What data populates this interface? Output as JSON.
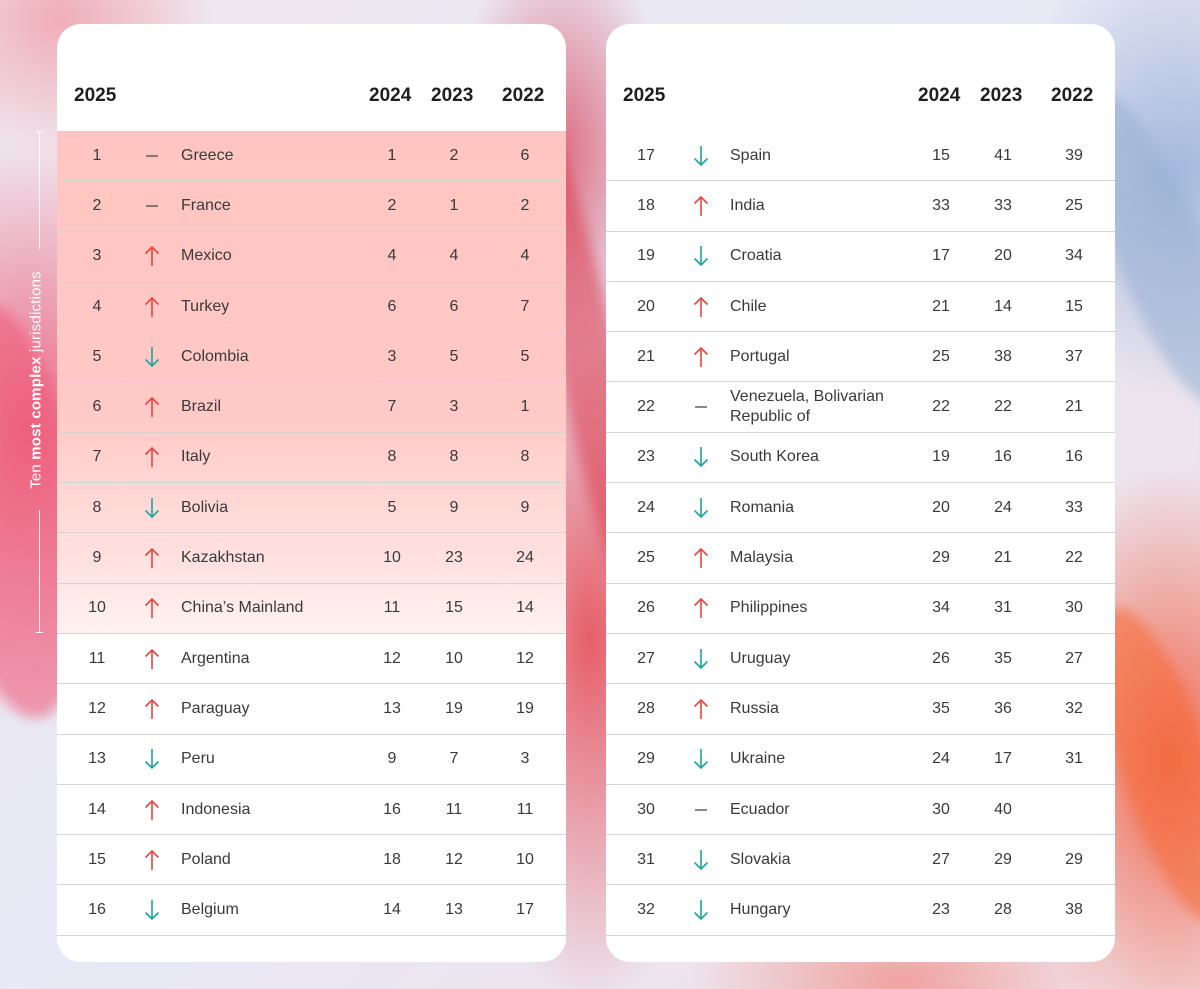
{
  "headers": {
    "y2025": "2025",
    "y2024": "2024",
    "y2023": "2023",
    "y2022": "2022"
  },
  "side_label": {
    "prefix": "Ten ",
    "bold": "most complex",
    "suffix": " jurisdictions"
  },
  "colors": {
    "up": "#e8463f",
    "down": "#1aa5a0",
    "same": "#555555",
    "highlight": "#ffc5c1"
  },
  "left_rows": [
    {
      "rank": "1",
      "trend": "same",
      "name": "Greece",
      "y2024": "1",
      "y2023": "2",
      "y2022": "6"
    },
    {
      "rank": "2",
      "trend": "same",
      "name": "France",
      "y2024": "2",
      "y2023": "1",
      "y2022": "2"
    },
    {
      "rank": "3",
      "trend": "up",
      "name": "Mexico",
      "y2024": "4",
      "y2023": "4",
      "y2022": "4"
    },
    {
      "rank": "4",
      "trend": "up",
      "name": "Turkey",
      "y2024": "6",
      "y2023": "6",
      "y2022": "7"
    },
    {
      "rank": "5",
      "trend": "down",
      "name": "Colombia",
      "y2024": "3",
      "y2023": "5",
      "y2022": "5"
    },
    {
      "rank": "6",
      "trend": "up",
      "name": "Brazil",
      "y2024": "7",
      "y2023": "3",
      "y2022": "1"
    },
    {
      "rank": "7",
      "trend": "up",
      "name": "Italy",
      "y2024": "8",
      "y2023": "8",
      "y2022": "8"
    },
    {
      "rank": "8",
      "trend": "down",
      "name": "Bolivia",
      "y2024": "5",
      "y2023": "9",
      "y2022": "9"
    },
    {
      "rank": "9",
      "trend": "up",
      "name": "Kazakhstan",
      "y2024": "10",
      "y2023": "23",
      "y2022": "24"
    },
    {
      "rank": "10",
      "trend": "up",
      "name": "China’s Mainland",
      "y2024": "11",
      "y2023": "15",
      "y2022": "14"
    },
    {
      "rank": "11",
      "trend": "up",
      "name": "Argentina",
      "y2024": "12",
      "y2023": "10",
      "y2022": "12"
    },
    {
      "rank": "12",
      "trend": "up",
      "name": "Paraguay",
      "y2024": "13",
      "y2023": "19",
      "y2022": "19"
    },
    {
      "rank": "13",
      "trend": "down",
      "name": "Peru",
      "y2024": "9",
      "y2023": "7",
      "y2022": "3"
    },
    {
      "rank": "14",
      "trend": "up",
      "name": "Indonesia",
      "y2024": "16",
      "y2023": "11",
      "y2022": "11"
    },
    {
      "rank": "15",
      "trend": "up",
      "name": "Poland",
      "y2024": "18",
      "y2023": "12",
      "y2022": "10"
    },
    {
      "rank": "16",
      "trend": "down",
      "name": "Belgium",
      "y2024": "14",
      "y2023": "13",
      "y2022": "17"
    }
  ],
  "right_rows": [
    {
      "rank": "17",
      "trend": "down",
      "name": "Spain",
      "y2024": "15",
      "y2023": "41",
      "y2022": "39"
    },
    {
      "rank": "18",
      "trend": "up",
      "name": "India",
      "y2024": "33",
      "y2023": "33",
      "y2022": "25"
    },
    {
      "rank": "19",
      "trend": "down",
      "name": "Croatia",
      "y2024": "17",
      "y2023": "20",
      "y2022": "34"
    },
    {
      "rank": "20",
      "trend": "up",
      "name": "Chile",
      "y2024": "21",
      "y2023": "14",
      "y2022": "15"
    },
    {
      "rank": "21",
      "trend": "up",
      "name": "Portugal",
      "y2024": "25",
      "y2023": "38",
      "y2022": "37"
    },
    {
      "rank": "22",
      "trend": "same",
      "name": "Venezuela, Bolivarian Republic of",
      "y2024": "22",
      "y2023": "22",
      "y2022": "21"
    },
    {
      "rank": "23",
      "trend": "down",
      "name": "South Korea",
      "y2024": "19",
      "y2023": "16",
      "y2022": "16"
    },
    {
      "rank": "24",
      "trend": "down",
      "name": "Romania",
      "y2024": "20",
      "y2023": "24",
      "y2022": "33"
    },
    {
      "rank": "25",
      "trend": "up",
      "name": "Malaysia",
      "y2024": "29",
      "y2023": "21",
      "y2022": "22"
    },
    {
      "rank": "26",
      "trend": "up",
      "name": "Philippines",
      "y2024": "34",
      "y2023": "31",
      "y2022": "30"
    },
    {
      "rank": "27",
      "trend": "down",
      "name": "Uruguay",
      "y2024": "26",
      "y2023": "35",
      "y2022": "27"
    },
    {
      "rank": "28",
      "trend": "up",
      "name": "Russia",
      "y2024": "35",
      "y2023": "36",
      "y2022": "32"
    },
    {
      "rank": "29",
      "trend": "down",
      "name": "Ukraine",
      "y2024": "24",
      "y2023": "17",
      "y2022": "31"
    },
    {
      "rank": "30",
      "trend": "same",
      "name": "Ecuador",
      "y2024": "30",
      "y2023": "40",
      "y2022": ""
    },
    {
      "rank": "31",
      "trend": "down",
      "name": "Slovakia",
      "y2024": "27",
      "y2023": "29",
      "y2022": "29"
    },
    {
      "rank": "32",
      "trend": "down",
      "name": "Hungary",
      "y2024": "23",
      "y2023": "28",
      "y2022": "38"
    }
  ]
}
